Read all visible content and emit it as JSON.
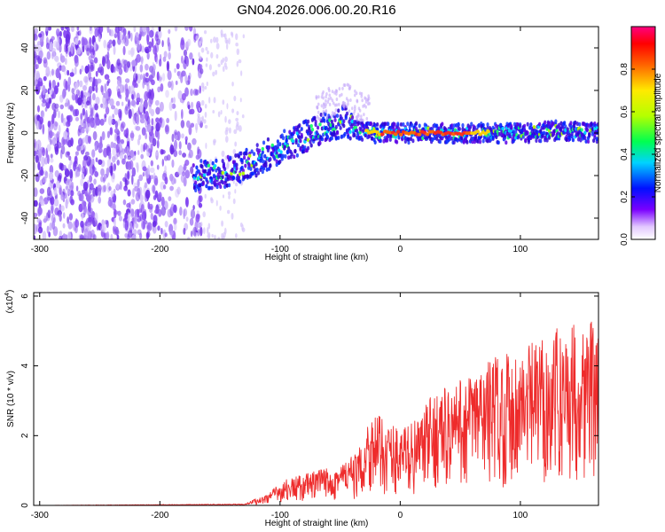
{
  "title": "GN04.2026.006.00.20.R16",
  "chart_data": [
    {
      "type": "heatmap",
      "name": "spectrogram",
      "xlabel": "Height of straight line (km)",
      "ylabel": "Frequency (Hz)",
      "xlim": [
        -305,
        165
      ],
      "ylim": [
        -50,
        50
      ],
      "x_ticks": [
        -300,
        -200,
        -100,
        0,
        100
      ],
      "y_ticks": [
        -40,
        -20,
        0,
        20,
        40
      ],
      "ridge": [
        {
          "x": -170,
          "y": -20
        },
        {
          "x": -140,
          "y": -18
        },
        {
          "x": -120,
          "y": -13
        },
        {
          "x": -100,
          "y": -7
        },
        {
          "x": -80,
          "y": -2
        },
        {
          "x": -60,
          "y": 3
        },
        {
          "x": -45,
          "y": 6
        },
        {
          "x": -35,
          "y": 1
        },
        {
          "x": -20,
          "y": 0
        },
        {
          "x": 0,
          "y": 0
        },
        {
          "x": 50,
          "y": 0
        },
        {
          "x": 100,
          "y": 0
        },
        {
          "x": 130,
          "y": 1
        },
        {
          "x": 165,
          "y": 0
        }
      ],
      "colorbar": {
        "label": "Normalized spectral amplitude",
        "range": [
          0,
          1
        ],
        "ticks": [
          0.0,
          0.2,
          0.4,
          0.6,
          0.8
        ]
      }
    },
    {
      "type": "line",
      "name": "snr",
      "xlabel": "Height of straight line (km)",
      "ylabel": "SNR (10 * v/v)",
      "y_scale_label": "(x10",
      "y_scale_exp": "4",
      "y_scale_close": ")",
      "xlim": [
        -305,
        165
      ],
      "ylim": [
        0,
        6.1
      ],
      "x_ticks": [
        -300,
        -200,
        -100,
        0,
        100
      ],
      "y_ticks": [
        0,
        2,
        4,
        6
      ],
      "color": "#ee2b2b",
      "envelope": [
        {
          "x": -305,
          "y": 0.0
        },
        {
          "x": -130,
          "y": 0.03
        },
        {
          "x": -115,
          "y": 0.2
        },
        {
          "x": -95,
          "y": 0.6
        },
        {
          "x": -70,
          "y": 0.8
        },
        {
          "x": -50,
          "y": 1.0
        },
        {
          "x": -35,
          "y": 1.2
        },
        {
          "x": -25,
          "y": 2.2
        },
        {
          "x": -15,
          "y": 2.0
        },
        {
          "x": 0,
          "y": 1.8
        },
        {
          "x": 15,
          "y": 2.0
        },
        {
          "x": 30,
          "y": 2.7
        },
        {
          "x": 45,
          "y": 2.8
        },
        {
          "x": 60,
          "y": 3.1
        },
        {
          "x": 80,
          "y": 3.5
        },
        {
          "x": 100,
          "y": 3.6
        },
        {
          "x": 120,
          "y": 3.9
        },
        {
          "x": 140,
          "y": 4.2
        },
        {
          "x": 165,
          "y": 4.3
        }
      ]
    }
  ]
}
